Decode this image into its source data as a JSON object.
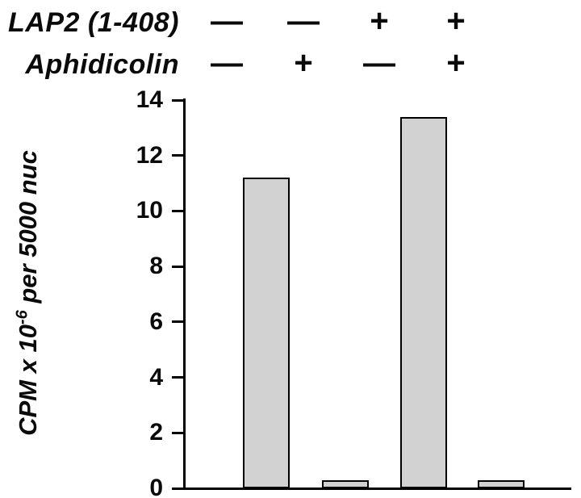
{
  "header": {
    "row1_label": "LAP2 (1-408)",
    "row1_symbols": [
      "—",
      "—",
      "+",
      "+"
    ],
    "row2_label": "Aphidicolin",
    "row2_symbols": [
      "—",
      "+",
      "—",
      "+"
    ]
  },
  "ylabel_parts": {
    "prefix": "CPM x 10",
    "exponent": "-6",
    "suffix": " per 5000 nuc"
  },
  "chart_data": {
    "type": "bar",
    "title": "",
    "categories": [
      "LAP2(1-408) − / Aphidicolin −",
      "LAP2(1-408) − / Aphidicolin +",
      "LAP2(1-408) + / Aphidicolin −",
      "LAP2(1-408) + / Aphidicolin +"
    ],
    "values": [
      11.2,
      0.3,
      13.4,
      0.3
    ],
    "xlabel": "",
    "ylabel": "CPM x 10^-6 per 5000 nuc",
    "ylim": [
      0,
      14
    ],
    "yticks": [
      0,
      2,
      4,
      6,
      8,
      10,
      12,
      14
    ],
    "grid": false,
    "legend": false,
    "bar_color": "#d2d2d2",
    "bar_border_color": "#000000",
    "axis_color": "#000000"
  }
}
